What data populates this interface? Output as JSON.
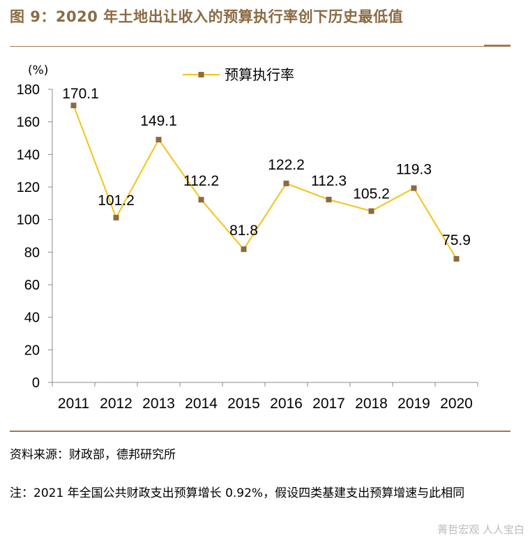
{
  "title": "图 9：2020 年土地出让收入的预算执行率创下历史最低值",
  "chart_data": {
    "type": "line",
    "unit_label": "(%)",
    "categories": [
      "2011",
      "2012",
      "2013",
      "2014",
      "2015",
      "2016",
      "2017",
      "2018",
      "2019",
      "2020"
    ],
    "series": [
      {
        "name": "预算执行率",
        "values": [
          170.1,
          101.2,
          149.1,
          112.2,
          81.8,
          122.2,
          112.3,
          105.2,
          119.3,
          75.9
        ]
      }
    ],
    "data_labels": [
      "170.1",
      "101.2",
      "149.1",
      "112.2",
      "81.8",
      "122.2",
      "112.3",
      "105.2",
      "119.3",
      "75.9"
    ],
    "ylim": [
      0,
      180
    ],
    "yticks": [
      0,
      20,
      40,
      60,
      80,
      100,
      120,
      140,
      160,
      180
    ],
    "legend_position": "top-center",
    "line_color": "#F2C417",
    "marker_color": "#8B6A43"
  },
  "source": "资料来源：财政部，德邦研究所",
  "note": "注：2021 年全国公共财政支出预算增长 0.92%，假设四类基建支出预算增速与此相同",
  "watermark": "菁哲宏观  人人宝白"
}
